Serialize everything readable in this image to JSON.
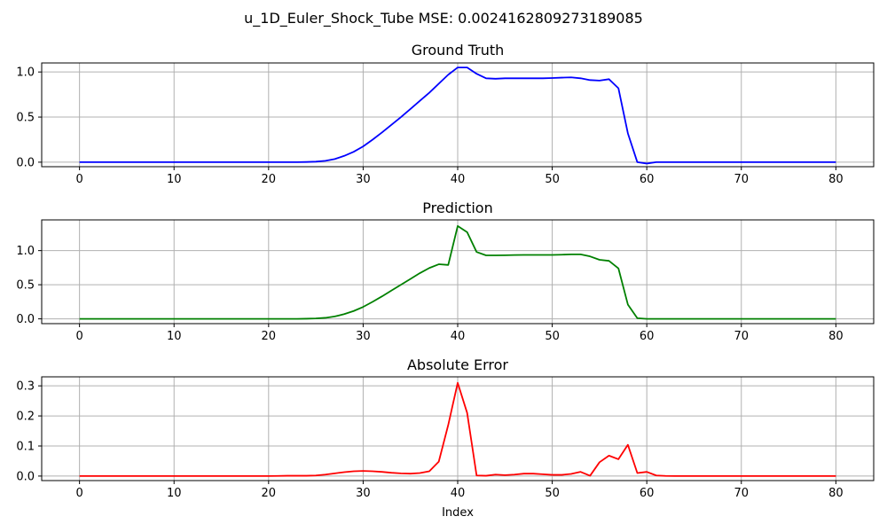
{
  "figure": {
    "suptitle": "u_1D_Euler_Shock_Tube MSE: 0.0024162809273189085",
    "xlabel": "Index"
  },
  "chart_data": [
    {
      "type": "line",
      "title": "Ground Truth",
      "color": "#0000ff",
      "xlim": [
        -4,
        84
      ],
      "ylim": [
        -0.05,
        1.1
      ],
      "xticks": [
        0,
        10,
        20,
        30,
        40,
        50,
        60,
        70,
        80
      ],
      "xtick_labels": [
        "0",
        "10",
        "20",
        "30",
        "40",
        "50",
        "60",
        "70",
        "80"
      ],
      "yticks": [
        0.0,
        0.5,
        1.0
      ],
      "ytick_labels": [
        "0.0",
        "0.5",
        "1.0"
      ],
      "grid": true,
      "x": [
        0,
        1,
        2,
        3,
        4,
        5,
        6,
        7,
        8,
        9,
        10,
        11,
        12,
        13,
        14,
        15,
        16,
        17,
        18,
        19,
        20,
        21,
        22,
        23,
        24,
        25,
        26,
        27,
        28,
        29,
        30,
        31,
        32,
        33,
        34,
        35,
        36,
        37,
        38,
        39,
        40,
        41,
        42,
        43,
        44,
        45,
        46,
        47,
        48,
        49,
        50,
        51,
        52,
        53,
        54,
        55,
        56,
        57,
        58,
        59,
        60,
        61,
        62,
        63,
        64,
        65,
        66,
        67,
        68,
        69,
        70,
        71,
        72,
        73,
        74,
        75,
        76,
        77,
        78,
        79,
        80
      ],
      "values": [
        0,
        0,
        0,
        0,
        0,
        0,
        0,
        0,
        0,
        0,
        0,
        0,
        0,
        0,
        0,
        0,
        0,
        0,
        0,
        0,
        0,
        0,
        0,
        0,
        0.002,
        0.006,
        0.015,
        0.035,
        0.07,
        0.115,
        0.175,
        0.25,
        0.33,
        0.415,
        0.5,
        0.59,
        0.68,
        0.77,
        0.87,
        0.97,
        1.05,
        1.05,
        0.98,
        0.93,
        0.925,
        0.93,
        0.93,
        0.93,
        0.93,
        0.93,
        0.933,
        0.937,
        0.94,
        0.93,
        0.91,
        0.905,
        0.92,
        0.82,
        0.32,
        0.0,
        -0.015,
        0.0,
        0,
        0,
        0,
        0,
        0,
        0,
        0,
        0,
        0,
        0,
        0,
        0,
        0,
        0,
        0,
        0,
        0,
        0,
        0
      ]
    },
    {
      "type": "line",
      "title": "Prediction",
      "color": "#008000",
      "xlim": [
        -4,
        84
      ],
      "ylim": [
        -0.07,
        1.45
      ],
      "xticks": [
        0,
        10,
        20,
        30,
        40,
        50,
        60,
        70,
        80
      ],
      "xtick_labels": [
        "0",
        "10",
        "20",
        "30",
        "40",
        "50",
        "60",
        "70",
        "80"
      ],
      "yticks": [
        0.0,
        0.5,
        1.0
      ],
      "ytick_labels": [
        "0.0",
        "0.5",
        "1.0"
      ],
      "grid": true,
      "x": [
        0,
        1,
        2,
        3,
        4,
        5,
        6,
        7,
        8,
        9,
        10,
        11,
        12,
        13,
        14,
        15,
        16,
        17,
        18,
        19,
        20,
        21,
        22,
        23,
        24,
        25,
        26,
        27,
        28,
        29,
        30,
        31,
        32,
        33,
        34,
        35,
        36,
        37,
        38,
        39,
        40,
        41,
        42,
        43,
        44,
        45,
        46,
        47,
        48,
        49,
        50,
        51,
        52,
        53,
        54,
        55,
        56,
        57,
        58,
        59,
        60,
        61,
        62,
        63,
        64,
        65,
        66,
        67,
        68,
        69,
        70,
        71,
        72,
        73,
        74,
        75,
        76,
        77,
        78,
        79,
        80
      ],
      "values": [
        0,
        0,
        0,
        0,
        0,
        0,
        0,
        0,
        0,
        0,
        0,
        0,
        0,
        0,
        0,
        0,
        0,
        0,
        0,
        0,
        0,
        0,
        0,
        0,
        0.002,
        0.006,
        0.015,
        0.035,
        0.07,
        0.115,
        0.175,
        0.25,
        0.33,
        0.415,
        0.5,
        0.585,
        0.67,
        0.745,
        0.8,
        0.79,
        1.36,
        1.27,
        0.98,
        0.93,
        0.93,
        0.932,
        0.935,
        0.937,
        0.937,
        0.937,
        0.937,
        0.94,
        0.945,
        0.945,
        0.915,
        0.865,
        0.85,
        0.74,
        0.21,
        0.01,
        0.0,
        0,
        0,
        0,
        0,
        0,
        0,
        0,
        0,
        0,
        0,
        0,
        0,
        0,
        0,
        0,
        0,
        0,
        0,
        0,
        0
      ]
    },
    {
      "type": "line",
      "title": "Absolute Error",
      "xlabel": "Index",
      "color": "#ff0000",
      "xlim": [
        -4,
        84
      ],
      "ylim": [
        -0.015,
        0.33
      ],
      "xticks": [
        0,
        10,
        20,
        30,
        40,
        50,
        60,
        70,
        80
      ],
      "xtick_labels": [
        "0",
        "10",
        "20",
        "30",
        "40",
        "50",
        "60",
        "70",
        "80"
      ],
      "yticks": [
        0.0,
        0.1,
        0.2,
        0.3
      ],
      "ytick_labels": [
        "0.0",
        "0.1",
        "0.2",
        "0.3"
      ],
      "grid": true,
      "x": [
        0,
        1,
        2,
        3,
        4,
        5,
        6,
        7,
        8,
        9,
        10,
        11,
        12,
        13,
        14,
        15,
        16,
        17,
        18,
        19,
        20,
        21,
        22,
        23,
        24,
        25,
        26,
        27,
        28,
        29,
        30,
        31,
        32,
        33,
        34,
        35,
        36,
        37,
        38,
        39,
        40,
        41,
        42,
        43,
        44,
        45,
        46,
        47,
        48,
        49,
        50,
        51,
        52,
        53,
        54,
        55,
        56,
        57,
        58,
        59,
        60,
        61,
        62,
        63,
        64,
        65,
        66,
        67,
        68,
        69,
        70,
        71,
        72,
        73,
        74,
        75,
        76,
        77,
        78,
        79,
        80
      ],
      "values": [
        0,
        0,
        0,
        0,
        0,
        0,
        0,
        0,
        0,
        0,
        0,
        0,
        0,
        0,
        0,
        0,
        0,
        0,
        0,
        0,
        0,
        0.0005,
        0.001,
        0.001,
        0.001,
        0.002,
        0.005,
        0.009,
        0.013,
        0.016,
        0.017,
        0.016,
        0.014,
        0.011,
        0.009,
        0.008,
        0.01,
        0.016,
        0.048,
        0.17,
        0.31,
        0.21,
        0.002,
        0.001,
        0.005,
        0.003,
        0.005,
        0.008,
        0.008,
        0.006,
        0.004,
        0.004,
        0.007,
        0.014,
        0.001,
        0.046,
        0.068,
        0.056,
        0.104,
        0.01,
        0.014,
        0.002,
        0.0005,
        0,
        0,
        0,
        0,
        0,
        0,
        0,
        0,
        0,
        0,
        0,
        0,
        0,
        0,
        0,
        0,
        0,
        0
      ]
    }
  ]
}
